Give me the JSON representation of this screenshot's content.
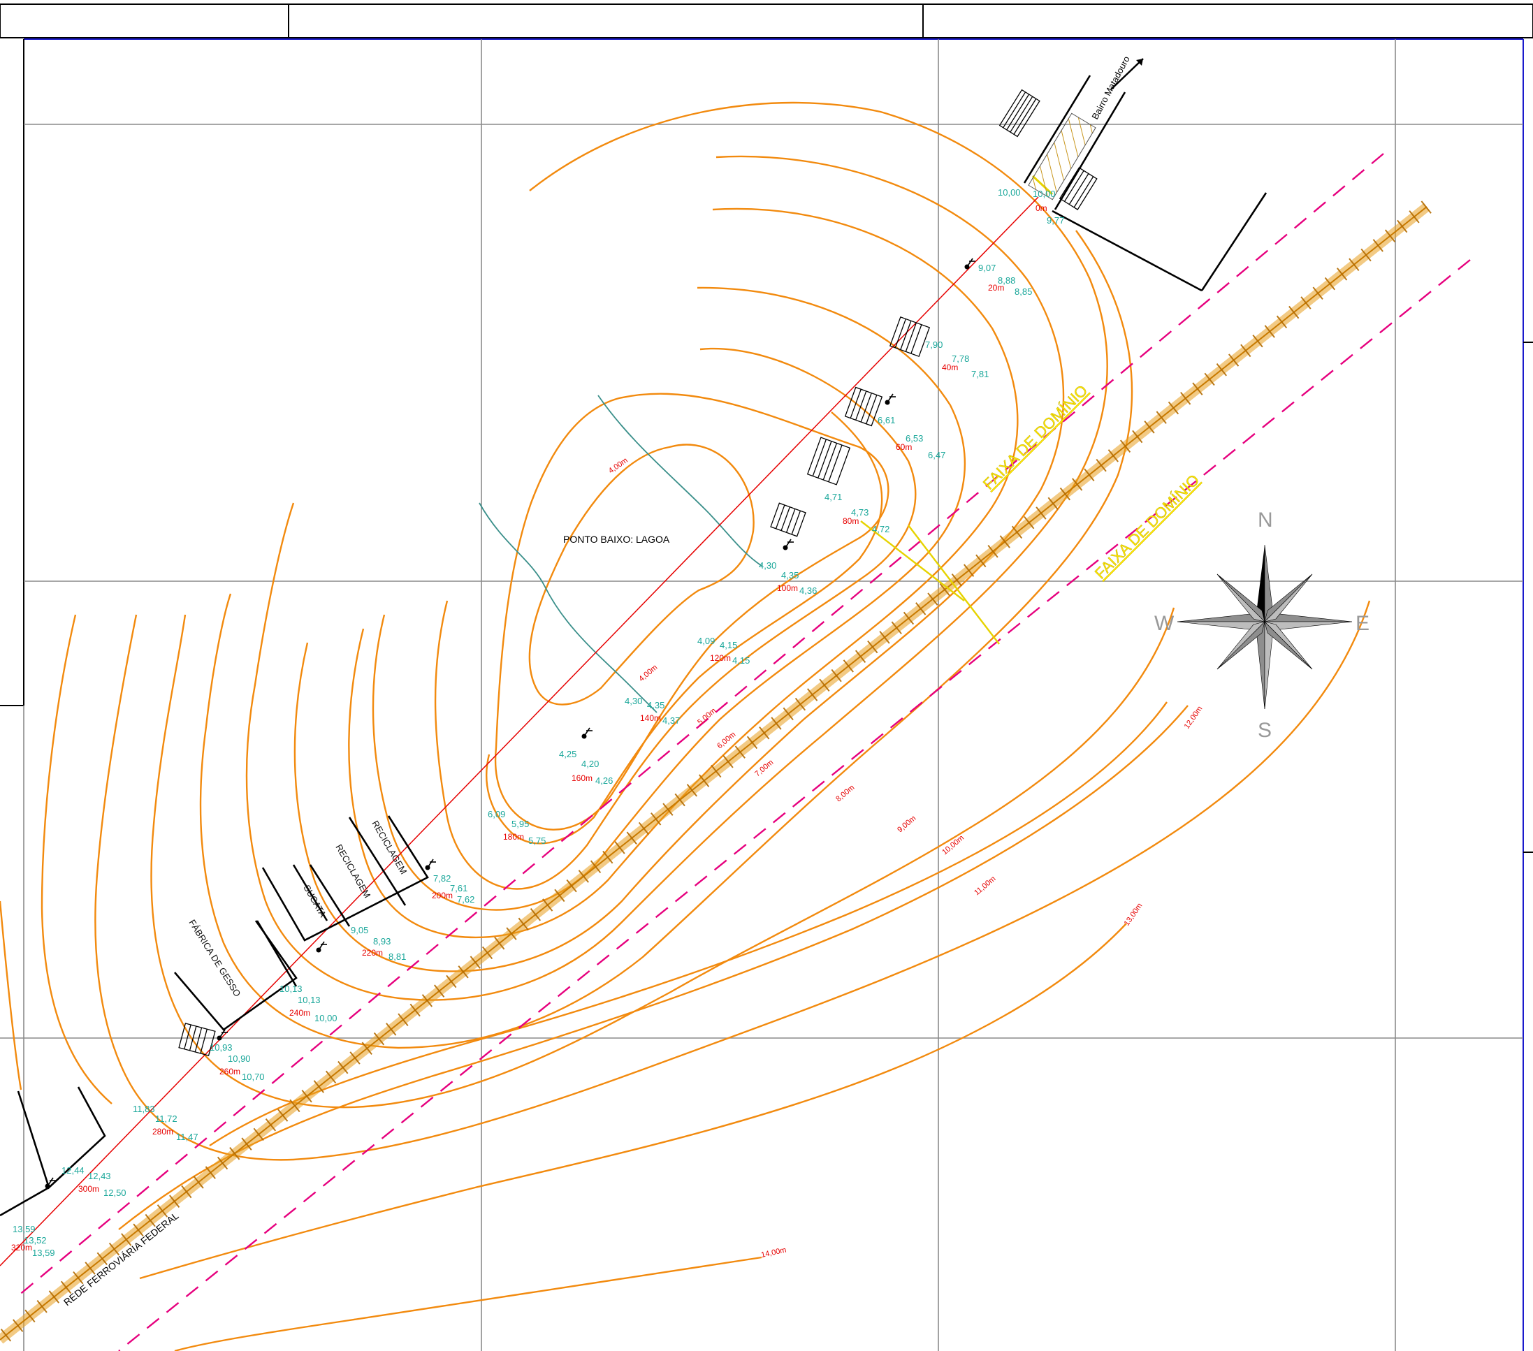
{
  "map": {
    "title_blocks": [
      "",
      "",
      ""
    ],
    "point_label": "PONTO BAIXO: LAGOA",
    "road_label": "Bairro Matadouro",
    "railway_label": "REDE FERROVIÁRIA FEDERAL",
    "right_of_way_labels": [
      "FAIXA DE DOMÍNIO",
      "FAIXA DE DOMÍNIO"
    ],
    "facilities": [
      "RECICLAGEM",
      "RECICLAGEM",
      "SUCATA",
      "FÁBRICA DE GESSO"
    ],
    "compass": {
      "n": "N",
      "s": "S",
      "e": "E",
      "w": "W"
    },
    "contour_labels": [
      "4,00m",
      "4,00m",
      "5,00m",
      "6,00m",
      "7,00m",
      "8,00m",
      "9,00m",
      "10,00m",
      "11,00m",
      "12,00m",
      "13,00m",
      "14,00m"
    ],
    "stations": [
      "0m",
      "20m",
      "40m",
      "60m",
      "80m",
      "100m",
      "120m",
      "140m",
      "160m",
      "180m",
      "200m",
      "220m",
      "240m",
      "260m",
      "280m",
      "300m",
      "320m"
    ],
    "spot_heights": [
      "10,00",
      "10,00",
      "9,77",
      "9,07",
      "8,88",
      "8,85",
      "7,90",
      "7,78",
      "7,81",
      "6,61",
      "6,53",
      "6,47",
      "4,71",
      "4,73",
      "4,72",
      "4,30",
      "4,35",
      "4,36",
      "4,09",
      "4,15",
      "4,15",
      "4,30",
      "4,35",
      "4,37",
      "4,25",
      "4,20",
      "4,26",
      "6,09",
      "5,95",
      "5,75",
      "7,82",
      "7,61",
      "7,62",
      "9,05",
      "8,93",
      "8,81",
      "10,13",
      "10,13",
      "10,00",
      "10,93",
      "10,90",
      "10,70",
      "11,83",
      "11,72",
      "11,47",
      "12,44",
      "12,43",
      "12,50",
      "13,59",
      "13,52",
      "13,59"
    ],
    "colors": {
      "contour": "#f28a0e",
      "spot": "#1aa79a",
      "station": "#e60000",
      "row": "#e6007e",
      "faixa": "#ffe600",
      "grid": "#8a8a8a",
      "frame": "#1a1acc"
    }
  }
}
